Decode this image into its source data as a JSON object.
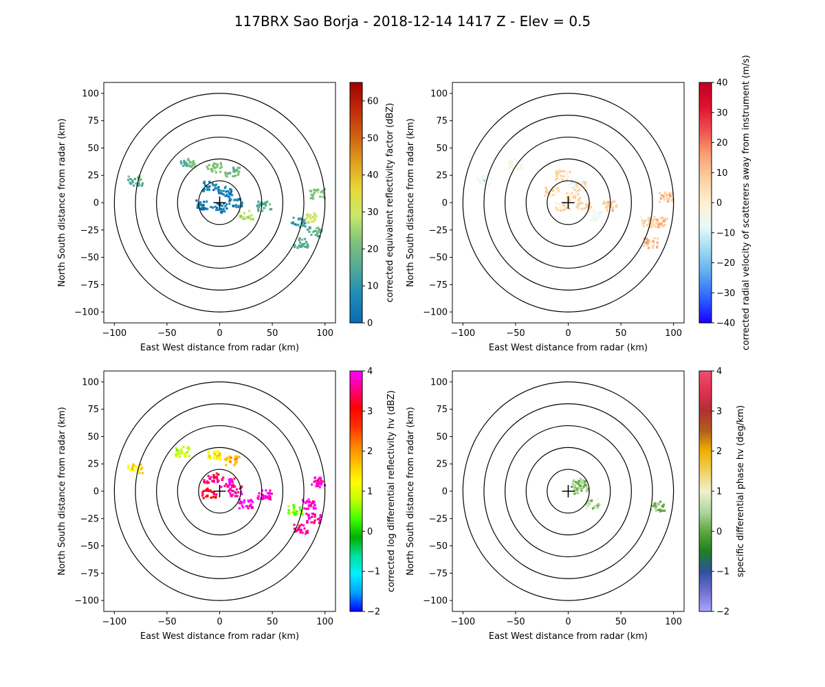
{
  "figure": {
    "title": "117BRX Sao Borja - 2018-12-14 1417 Z -  Elev = 0.5"
  },
  "chart_data": [
    {
      "type": "heatmap",
      "field": "reflectivity",
      "xlabel": "East West distance from radar (km)",
      "ylabel": "North South distance from radar (km)",
      "xlim": [
        -110,
        110
      ],
      "ylim": [
        -110,
        110
      ],
      "xticks": [
        -100,
        -50,
        0,
        50,
        100
      ],
      "yticks": [
        -100,
        -75,
        -50,
        -25,
        0,
        25,
        50,
        75,
        100
      ],
      "range_rings_km": [
        20,
        40,
        60,
        80,
        100
      ],
      "colorbar": {
        "label": "corrected equivalent reflectivity factor (dBZ)",
        "min": 0,
        "max": 65,
        "ticks": [
          0,
          10,
          20,
          30,
          40,
          50,
          60
        ],
        "colors": [
          "#0b6bb0",
          "#1a8ab8",
          "#4fa89a",
          "#7cc27a",
          "#c7e86a",
          "#e8d83a",
          "#e0a020",
          "#d06010",
          "#c02a08",
          "#a00000"
        ]
      },
      "echoes": [
        {
          "x": -30,
          "y": 36,
          "value": 18
        },
        {
          "x": -5,
          "y": 32,
          "value": 22
        },
        {
          "x": 12,
          "y": 28,
          "value": 20
        },
        {
          "x": -10,
          "y": 15,
          "value": 6
        },
        {
          "x": 5,
          "y": 10,
          "value": 5
        },
        {
          "x": -15,
          "y": -2,
          "value": 4
        },
        {
          "x": 15,
          "y": 0,
          "value": 6
        },
        {
          "x": 0,
          "y": -5,
          "value": 4
        },
        {
          "x": 25,
          "y": -12,
          "value": 28
        },
        {
          "x": 42,
          "y": -3,
          "value": 16
        },
        {
          "x": 85,
          "y": -14,
          "value": 30
        },
        {
          "x": 90,
          "y": -27,
          "value": 18
        },
        {
          "x": 93,
          "y": 8,
          "value": 22
        },
        {
          "x": 75,
          "y": -18,
          "value": 12
        },
        {
          "x": 77,
          "y": -37,
          "value": 16
        },
        {
          "x": -80,
          "y": 20,
          "value": 15
        }
      ]
    },
    {
      "type": "heatmap",
      "field": "velocity",
      "xlabel": "East West distance from radar (km)",
      "ylabel": "North South distance from radar (km)",
      "xlim": [
        -110,
        110
      ],
      "ylim": [
        -110,
        110
      ],
      "xticks": [
        -100,
        -50,
        0,
        50,
        100
      ],
      "yticks": [
        -100,
        -75,
        -50,
        -25,
        0,
        25,
        50,
        75,
        100
      ],
      "range_rings_km": [
        20,
        40,
        60,
        80,
        100
      ],
      "colorbar": {
        "label": "corrected radial velocity of scatterers away from instrument (m/s)",
        "min": -40,
        "max": 40,
        "ticks": [
          -40,
          -30,
          -20,
          -10,
          0,
          10,
          20,
          30,
          40
        ],
        "colors": [
          "#1a00ff",
          "#2a60ff",
          "#5aa8f0",
          "#9ad8f0",
          "#e8fafa",
          "#fff0d0",
          "#fbd0a0",
          "#f8a070",
          "#f05050",
          "#e01030",
          "#c00020"
        ]
      },
      "echoes": [
        {
          "x": -5,
          "y": 25,
          "value": 6
        },
        {
          "x": 10,
          "y": 15,
          "value": 7
        },
        {
          "x": -15,
          "y": 10,
          "value": 5
        },
        {
          "x": 5,
          "y": 5,
          "value": 4
        },
        {
          "x": -5,
          "y": -3,
          "value": 5
        },
        {
          "x": 15,
          "y": -2,
          "value": 8
        },
        {
          "x": 25,
          "y": -12,
          "value": -6
        },
        {
          "x": 40,
          "y": -3,
          "value": 9
        },
        {
          "x": 88,
          "y": -18,
          "value": 12
        },
        {
          "x": 93,
          "y": 5,
          "value": 10
        },
        {
          "x": 75,
          "y": -18,
          "value": 8
        },
        {
          "x": 78,
          "y": -37,
          "value": 14
        },
        {
          "x": -50,
          "y": 35,
          "value": -4
        },
        {
          "x": -80,
          "y": 20,
          "value": -8
        },
        {
          "x": 8,
          "y": 18,
          "value": -7
        }
      ]
    },
    {
      "type": "heatmap",
      "field": "differential_reflectivity",
      "xlabel": "East West distance from radar (km)",
      "ylabel": "North South distance from radar (km)",
      "xlim": [
        -110,
        110
      ],
      "ylim": [
        -110,
        110
      ],
      "xticks": [
        -100,
        -50,
        0,
        50,
        100
      ],
      "yticks": [
        -100,
        -75,
        -50,
        -25,
        0,
        25,
        50,
        75,
        100
      ],
      "range_rings_km": [
        20,
        40,
        60,
        80,
        100
      ],
      "colorbar": {
        "label": "corrected log differential reflectivity hv (dBZ)",
        "min": -2,
        "max": 4,
        "ticks": [
          -2,
          -1,
          0,
          1,
          2,
          3,
          4
        ],
        "colors": [
          "#0000ff",
          "#00a0ff",
          "#00f0ff",
          "#00e0a0",
          "#00b000",
          "#40ff00",
          "#c0ff00",
          "#ffff00",
          "#ffc000",
          "#ff8000",
          "#ff3000",
          "#ff0000",
          "#ff0080",
          "#ff00ff"
        ]
      },
      "echoes": [
        {
          "x": -35,
          "y": 36,
          "value": 0.8
        },
        {
          "x": -5,
          "y": 32,
          "value": 1.2
        },
        {
          "x": 12,
          "y": 28,
          "value": 1.8
        },
        {
          "x": -8,
          "y": 12,
          "value": 3.5
        },
        {
          "x": 8,
          "y": 8,
          "value": 3.8
        },
        {
          "x": -10,
          "y": -2,
          "value": 3.2
        },
        {
          "x": 15,
          "y": 0,
          "value": 3.7
        },
        {
          "x": 25,
          "y": -12,
          "value": 3.9
        },
        {
          "x": 43,
          "y": -3,
          "value": 3.8
        },
        {
          "x": 85,
          "y": -12,
          "value": 3.9
        },
        {
          "x": 89,
          "y": -25,
          "value": 3.8
        },
        {
          "x": 93,
          "y": 8,
          "value": 3.9
        },
        {
          "x": 72,
          "y": -17,
          "value": 0.5
        },
        {
          "x": 77,
          "y": -35,
          "value": 3.6
        },
        {
          "x": -80,
          "y": 20,
          "value": 1.5
        }
      ]
    },
    {
      "type": "heatmap",
      "field": "specific_differential_phase",
      "xlabel": "East West distance from radar (km)",
      "ylabel": "North South distance from radar (km)",
      "xlim": [
        -110,
        110
      ],
      "ylim": [
        -110,
        110
      ],
      "xticks": [
        -100,
        -50,
        0,
        50,
        100
      ],
      "yticks": [
        -100,
        -75,
        -50,
        -25,
        0,
        25,
        50,
        75,
        100
      ],
      "range_rings_km": [
        20,
        40,
        60,
        80,
        100
      ],
      "colorbar": {
        "label": "specific differential phase hv (deg/km)",
        "min": -2,
        "max": 4,
        "ticks": [
          -2,
          -1,
          0,
          1,
          2,
          3,
          4
        ],
        "colors": [
          "#a8a8ff",
          "#7070d0",
          "#3050a0",
          "#208020",
          "#60a840",
          "#b0d8a0",
          "#f0f0d0",
          "#f0d060",
          "#f0b000",
          "#b06020",
          "#b03030",
          "#e03050",
          "#f05070"
        ]
      },
      "echoes": [
        {
          "x": 10,
          "y": 7,
          "value": 0.4
        },
        {
          "x": 12,
          "y": 2,
          "value": 0.3
        },
        {
          "x": 23,
          "y": -12,
          "value": 0.5
        },
        {
          "x": 85,
          "y": -14,
          "value": 0.2
        }
      ]
    }
  ]
}
